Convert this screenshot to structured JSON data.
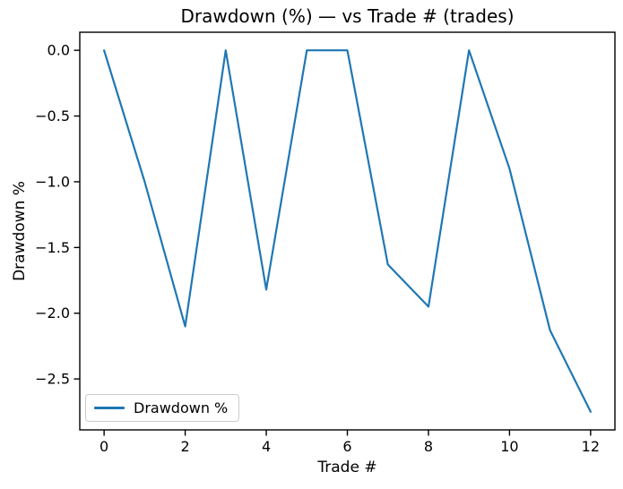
{
  "chart_data": {
    "type": "line",
    "title": "Drawdown (%) — vs Trade # (trades)",
    "xlabel": "Trade #",
    "ylabel": "Drawdown %",
    "x": [
      0,
      1,
      2,
      3,
      4,
      5,
      6,
      7,
      8,
      9,
      10,
      11,
      12
    ],
    "series": [
      {
        "name": "Drawdown %",
        "color": "#1f77b4",
        "values": [
          0.0,
          -1.0,
          -2.1,
          0.0,
          -1.82,
          0.0,
          0.0,
          -1.63,
          -1.95,
          0.0,
          -0.9,
          -2.13,
          -2.75
        ]
      }
    ],
    "xticks": [
      0,
      2,
      4,
      6,
      8,
      10,
      12
    ],
    "yticks": [
      0.0,
      -0.5,
      -1.0,
      -1.5,
      -2.0,
      -2.5
    ],
    "xlim": [
      -0.6,
      12.6
    ],
    "ylim": [
      -2.8875,
      0.1375
    ],
    "grid": false,
    "legend_position": "lower left",
    "legend_labels": [
      "Drawdown %"
    ]
  },
  "colors": {
    "line": "#1f77b4",
    "spine": "#000000",
    "legend_border": "#cccccc",
    "background": "#ffffff"
  }
}
